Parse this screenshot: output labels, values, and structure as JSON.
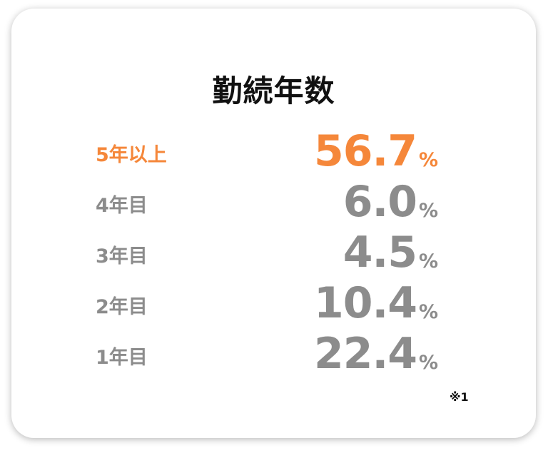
{
  "title": "勤続年数",
  "rows": [
    {
      "label": "5年以上",
      "value": "56.7",
      "unit": "%",
      "color": "#f5873a"
    },
    {
      "label": "4年目",
      "value": "6.0",
      "unit": "%",
      "color": "#8c8c8c"
    },
    {
      "label": "3年目",
      "value": "4.5",
      "unit": "%",
      "color": "#8c8c8c"
    },
    {
      "label": "2年目",
      "value": "10.4",
      "unit": "%",
      "color": "#8c8c8c"
    },
    {
      "label": "1年目",
      "value": "22.4",
      "unit": "%",
      "color": "#8c8c8c"
    }
  ],
  "note": "※1"
}
